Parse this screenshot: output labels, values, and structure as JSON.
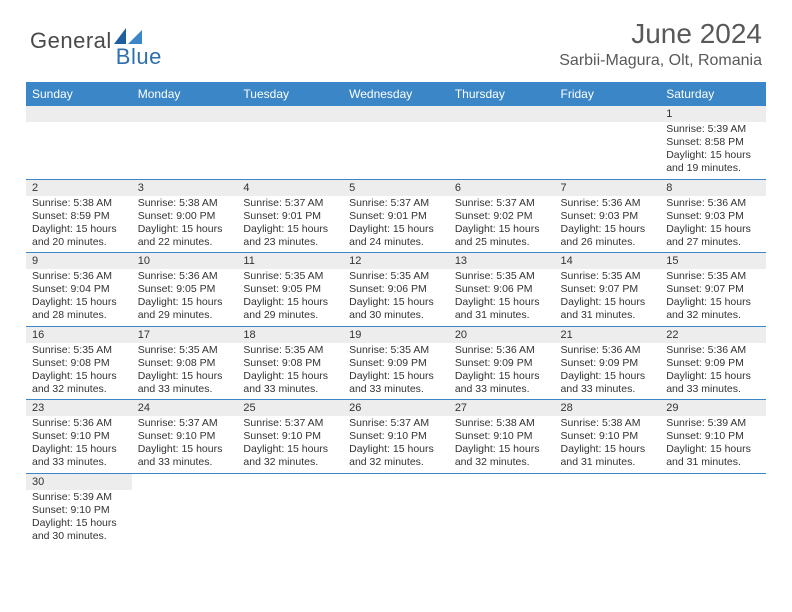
{
  "brand": {
    "part1": "General",
    "part2": "Blue"
  },
  "title": "June 2024",
  "location": "Sarbii-Magura, Olt, Romania",
  "colors": {
    "headerBlue": "#3b86c6",
    "logoBlue": "#2f6fab",
    "textGray": "#595959",
    "dayBg": "#ededed",
    "borderBlue": "#3b86c6"
  },
  "dayHeaders": [
    "Sunday",
    "Monday",
    "Tuesday",
    "Wednesday",
    "Thursday",
    "Friday",
    "Saturday"
  ],
  "weeks": [
    [
      null,
      null,
      null,
      null,
      null,
      null,
      {
        "n": "1",
        "r": "Sunrise: 5:39 AM",
        "s": "Sunset: 8:58 PM",
        "d": "Daylight: 15 hours and 19 minutes."
      }
    ],
    [
      {
        "n": "2",
        "r": "Sunrise: 5:38 AM",
        "s": "Sunset: 8:59 PM",
        "d": "Daylight: 15 hours and 20 minutes."
      },
      {
        "n": "3",
        "r": "Sunrise: 5:38 AM",
        "s": "Sunset: 9:00 PM",
        "d": "Daylight: 15 hours and 22 minutes."
      },
      {
        "n": "4",
        "r": "Sunrise: 5:37 AM",
        "s": "Sunset: 9:01 PM",
        "d": "Daylight: 15 hours and 23 minutes."
      },
      {
        "n": "5",
        "r": "Sunrise: 5:37 AM",
        "s": "Sunset: 9:01 PM",
        "d": "Daylight: 15 hours and 24 minutes."
      },
      {
        "n": "6",
        "r": "Sunrise: 5:37 AM",
        "s": "Sunset: 9:02 PM",
        "d": "Daylight: 15 hours and 25 minutes."
      },
      {
        "n": "7",
        "r": "Sunrise: 5:36 AM",
        "s": "Sunset: 9:03 PM",
        "d": "Daylight: 15 hours and 26 minutes."
      },
      {
        "n": "8",
        "r": "Sunrise: 5:36 AM",
        "s": "Sunset: 9:03 PM",
        "d": "Daylight: 15 hours and 27 minutes."
      }
    ],
    [
      {
        "n": "9",
        "r": "Sunrise: 5:36 AM",
        "s": "Sunset: 9:04 PM",
        "d": "Daylight: 15 hours and 28 minutes."
      },
      {
        "n": "10",
        "r": "Sunrise: 5:36 AM",
        "s": "Sunset: 9:05 PM",
        "d": "Daylight: 15 hours and 29 minutes."
      },
      {
        "n": "11",
        "r": "Sunrise: 5:35 AM",
        "s": "Sunset: 9:05 PM",
        "d": "Daylight: 15 hours and 29 minutes."
      },
      {
        "n": "12",
        "r": "Sunrise: 5:35 AM",
        "s": "Sunset: 9:06 PM",
        "d": "Daylight: 15 hours and 30 minutes."
      },
      {
        "n": "13",
        "r": "Sunrise: 5:35 AM",
        "s": "Sunset: 9:06 PM",
        "d": "Daylight: 15 hours and 31 minutes."
      },
      {
        "n": "14",
        "r": "Sunrise: 5:35 AM",
        "s": "Sunset: 9:07 PM",
        "d": "Daylight: 15 hours and 31 minutes."
      },
      {
        "n": "15",
        "r": "Sunrise: 5:35 AM",
        "s": "Sunset: 9:07 PM",
        "d": "Daylight: 15 hours and 32 minutes."
      }
    ],
    [
      {
        "n": "16",
        "r": "Sunrise: 5:35 AM",
        "s": "Sunset: 9:08 PM",
        "d": "Daylight: 15 hours and 32 minutes."
      },
      {
        "n": "17",
        "r": "Sunrise: 5:35 AM",
        "s": "Sunset: 9:08 PM",
        "d": "Daylight: 15 hours and 33 minutes."
      },
      {
        "n": "18",
        "r": "Sunrise: 5:35 AM",
        "s": "Sunset: 9:08 PM",
        "d": "Daylight: 15 hours and 33 minutes."
      },
      {
        "n": "19",
        "r": "Sunrise: 5:35 AM",
        "s": "Sunset: 9:09 PM",
        "d": "Daylight: 15 hours and 33 minutes."
      },
      {
        "n": "20",
        "r": "Sunrise: 5:36 AM",
        "s": "Sunset: 9:09 PM",
        "d": "Daylight: 15 hours and 33 minutes."
      },
      {
        "n": "21",
        "r": "Sunrise: 5:36 AM",
        "s": "Sunset: 9:09 PM",
        "d": "Daylight: 15 hours and 33 minutes."
      },
      {
        "n": "22",
        "r": "Sunrise: 5:36 AM",
        "s": "Sunset: 9:09 PM",
        "d": "Daylight: 15 hours and 33 minutes."
      }
    ],
    [
      {
        "n": "23",
        "r": "Sunrise: 5:36 AM",
        "s": "Sunset: 9:10 PM",
        "d": "Daylight: 15 hours and 33 minutes."
      },
      {
        "n": "24",
        "r": "Sunrise: 5:37 AM",
        "s": "Sunset: 9:10 PM",
        "d": "Daylight: 15 hours and 33 minutes."
      },
      {
        "n": "25",
        "r": "Sunrise: 5:37 AM",
        "s": "Sunset: 9:10 PM",
        "d": "Daylight: 15 hours and 32 minutes."
      },
      {
        "n": "26",
        "r": "Sunrise: 5:37 AM",
        "s": "Sunset: 9:10 PM",
        "d": "Daylight: 15 hours and 32 minutes."
      },
      {
        "n": "27",
        "r": "Sunrise: 5:38 AM",
        "s": "Sunset: 9:10 PM",
        "d": "Daylight: 15 hours and 32 minutes."
      },
      {
        "n": "28",
        "r": "Sunrise: 5:38 AM",
        "s": "Sunset: 9:10 PM",
        "d": "Daylight: 15 hours and 31 minutes."
      },
      {
        "n": "29",
        "r": "Sunrise: 5:39 AM",
        "s": "Sunset: 9:10 PM",
        "d": "Daylight: 15 hours and 31 minutes."
      }
    ],
    [
      {
        "n": "30",
        "r": "Sunrise: 5:39 AM",
        "s": "Sunset: 9:10 PM",
        "d": "Daylight: 15 hours and 30 minutes."
      },
      null,
      null,
      null,
      null,
      null,
      null
    ]
  ]
}
